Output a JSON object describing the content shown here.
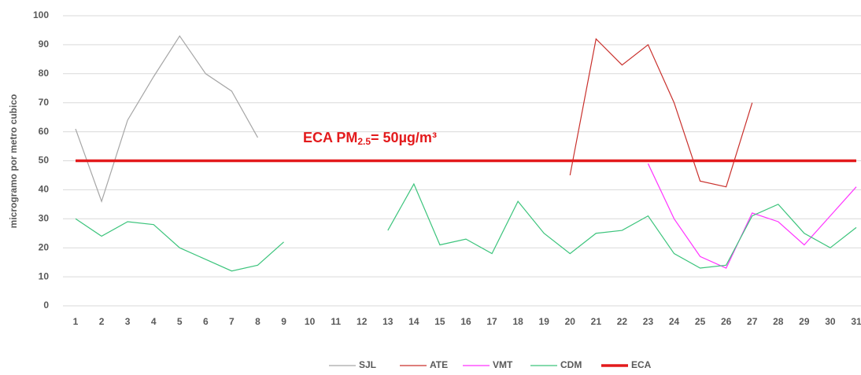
{
  "chart_data": {
    "type": "line",
    "y_label": "microgramo por metro cubico",
    "annotation": {
      "text": "ECA PM",
      "subscript": "2.5",
      "suffix": "= 50µg/m³",
      "color": "#e31a1c"
    },
    "categories": [
      "1",
      "2",
      "3",
      "4",
      "5",
      "6",
      "7",
      "8",
      "9",
      "10",
      "11",
      "12",
      "13",
      "14",
      "15",
      "16",
      "17",
      "18",
      "19",
      "20",
      "21",
      "22",
      "23",
      "24",
      "25",
      "26",
      "27",
      "28",
      "29",
      "30",
      "31"
    ],
    "ylim": [
      0,
      100
    ],
    "yticks": [
      0,
      10,
      20,
      30,
      40,
      50,
      60,
      70,
      80,
      90,
      100
    ],
    "grid": true,
    "legend": "bottom",
    "series": [
      {
        "name": "SJL",
        "color": "#a6a6a6",
        "width": 1.2,
        "values": [
          61,
          36,
          64,
          79,
          93,
          80,
          74,
          58,
          null,
          null,
          null,
          null,
          null,
          null,
          null,
          null,
          null,
          null,
          null,
          null,
          null,
          null,
          null,
          null,
          null,
          null,
          null,
          null,
          null,
          null,
          null
        ]
      },
      {
        "name": "ATE",
        "color": "#c9302c",
        "width": 1.2,
        "values": [
          null,
          null,
          null,
          null,
          null,
          null,
          null,
          null,
          null,
          null,
          null,
          null,
          null,
          null,
          null,
          null,
          null,
          null,
          null,
          45,
          92,
          83,
          90,
          70,
          43,
          41,
          70,
          null,
          null,
          null,
          null
        ]
      },
      {
        "name": "VMT",
        "color": "#ff33ff",
        "width": 1.2,
        "values": [
          null,
          null,
          null,
          null,
          null,
          null,
          null,
          null,
          null,
          null,
          null,
          null,
          null,
          null,
          null,
          null,
          null,
          null,
          null,
          null,
          null,
          null,
          49,
          30,
          17,
          13,
          32,
          29,
          21,
          31,
          41
        ]
      },
      {
        "name": "CDM",
        "color": "#3cc47c",
        "width": 1.2,
        "values": [
          30,
          24,
          29,
          28,
          20,
          16,
          12,
          14,
          22,
          null,
          null,
          null,
          26,
          42,
          21,
          23,
          18,
          36,
          25,
          18,
          25,
          26,
          31,
          18,
          13,
          14,
          31,
          35,
          25,
          20,
          27
        ]
      },
      {
        "name": "ECA",
        "color": "#e31a1c",
        "width": 3.5,
        "values": [
          50,
          50,
          50,
          50,
          50,
          50,
          50,
          50,
          50,
          50,
          50,
          50,
          50,
          50,
          50,
          50,
          50,
          50,
          50,
          50,
          50,
          50,
          50,
          50,
          50,
          50,
          50,
          50,
          50,
          50,
          50
        ]
      }
    ]
  }
}
